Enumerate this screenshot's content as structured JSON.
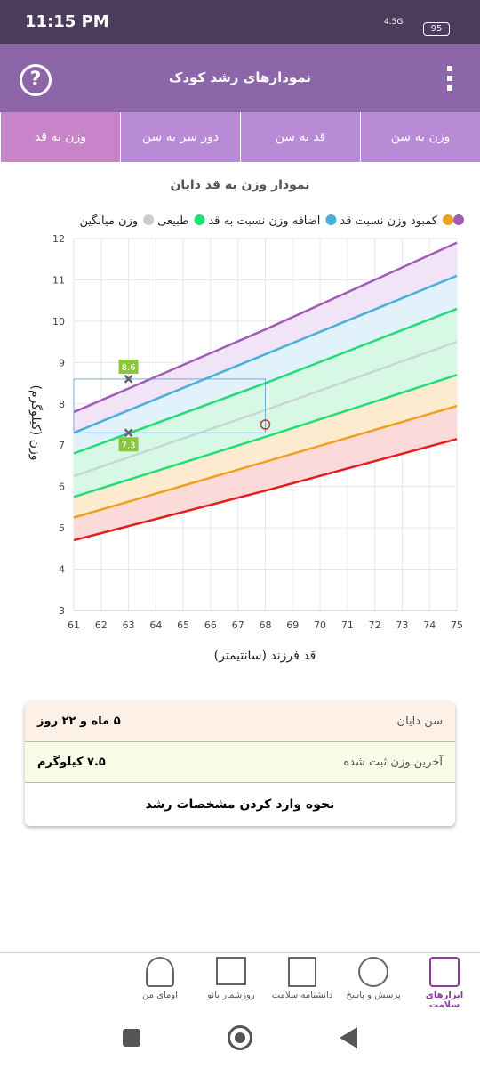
{
  "status_bar": {
    "time": "11:15 PM",
    "network": "4.5G",
    "battery": "95"
  },
  "header": {
    "title": "نمودارهای رشد کودک"
  },
  "tabs": [
    "وزن به سن",
    "قد به سن",
    "دور سر به سن",
    "وزن به قد"
  ],
  "chart_data": {
    "type": "line",
    "title": "نمودار وزن به قد دایان",
    "legend": [
      {
        "color": "#a05cb8"
      },
      {
        "label": "کمبود وزن نسبت قد",
        "color": "#f0a020"
      },
      {
        "label": "اضافه وزن نسبت به قد",
        "color": "#4ab0d8"
      },
      {
        "label": "طبیعی",
        "color": "#22dd77"
      },
      {
        "label": "وزن میانگین",
        "color": "#cccccc"
      }
    ],
    "x_label": "قد فرزند (سانتیمتر)",
    "y_label": "وزن (کیلوگرم)",
    "x": [
      61,
      68,
      75
    ],
    "series": [
      {
        "color": "#a05cb8",
        "values": [
          7.8,
          9.8,
          11.9
        ]
      },
      {
        "color": "#4ab0d8",
        "values": [
          7.3,
          9.2,
          11.1
        ]
      },
      {
        "color": "#22dd77",
        "values": [
          6.8,
          8.5,
          10.3
        ]
      },
      {
        "color": "#c8d8cc",
        "values": [
          6.25,
          7.85,
          9.5
        ]
      },
      {
        "color": "#22dd77",
        "values": [
          5.75,
          7.2,
          8.7
        ]
      },
      {
        "color": "#f0a020",
        "values": [
          5.25,
          6.6,
          7.95
        ]
      },
      {
        "color": "#e02020",
        "values": [
          4.7,
          5.9,
          7.15
        ]
      }
    ],
    "points": [
      {
        "x": 63,
        "y": 8.6
      },
      {
        "x": 63,
        "y": 7.3
      }
    ],
    "current": {
      "x": 68,
      "y": 7.5
    },
    "xlim": [
      61,
      75
    ],
    "ylim": [
      3,
      12
    ],
    "xticks": [
      61,
      62,
      63,
      64,
      65,
      66,
      67,
      68,
      69,
      70,
      71,
      72,
      73,
      74,
      75
    ],
    "yticks": [
      3,
      4,
      5,
      6,
      7,
      8,
      9,
      10,
      11,
      12
    ],
    "grid": true
  },
  "info": {
    "rows": [
      {
        "label": "سن دایان",
        "value": "۵ ماه و ۲۲ روز"
      },
      {
        "label": "آخرین وزن ثبت شده",
        "value": "۷.۵ کیلوگرم"
      }
    ],
    "button": "نحوه وارد کردن مشخصات رشد"
  },
  "nav": [
    "ابزارهای سلامت",
    "پرسش و پاسخ",
    "دانشنامه سلامت",
    "روزشمار بانو",
    "اومای من"
  ]
}
